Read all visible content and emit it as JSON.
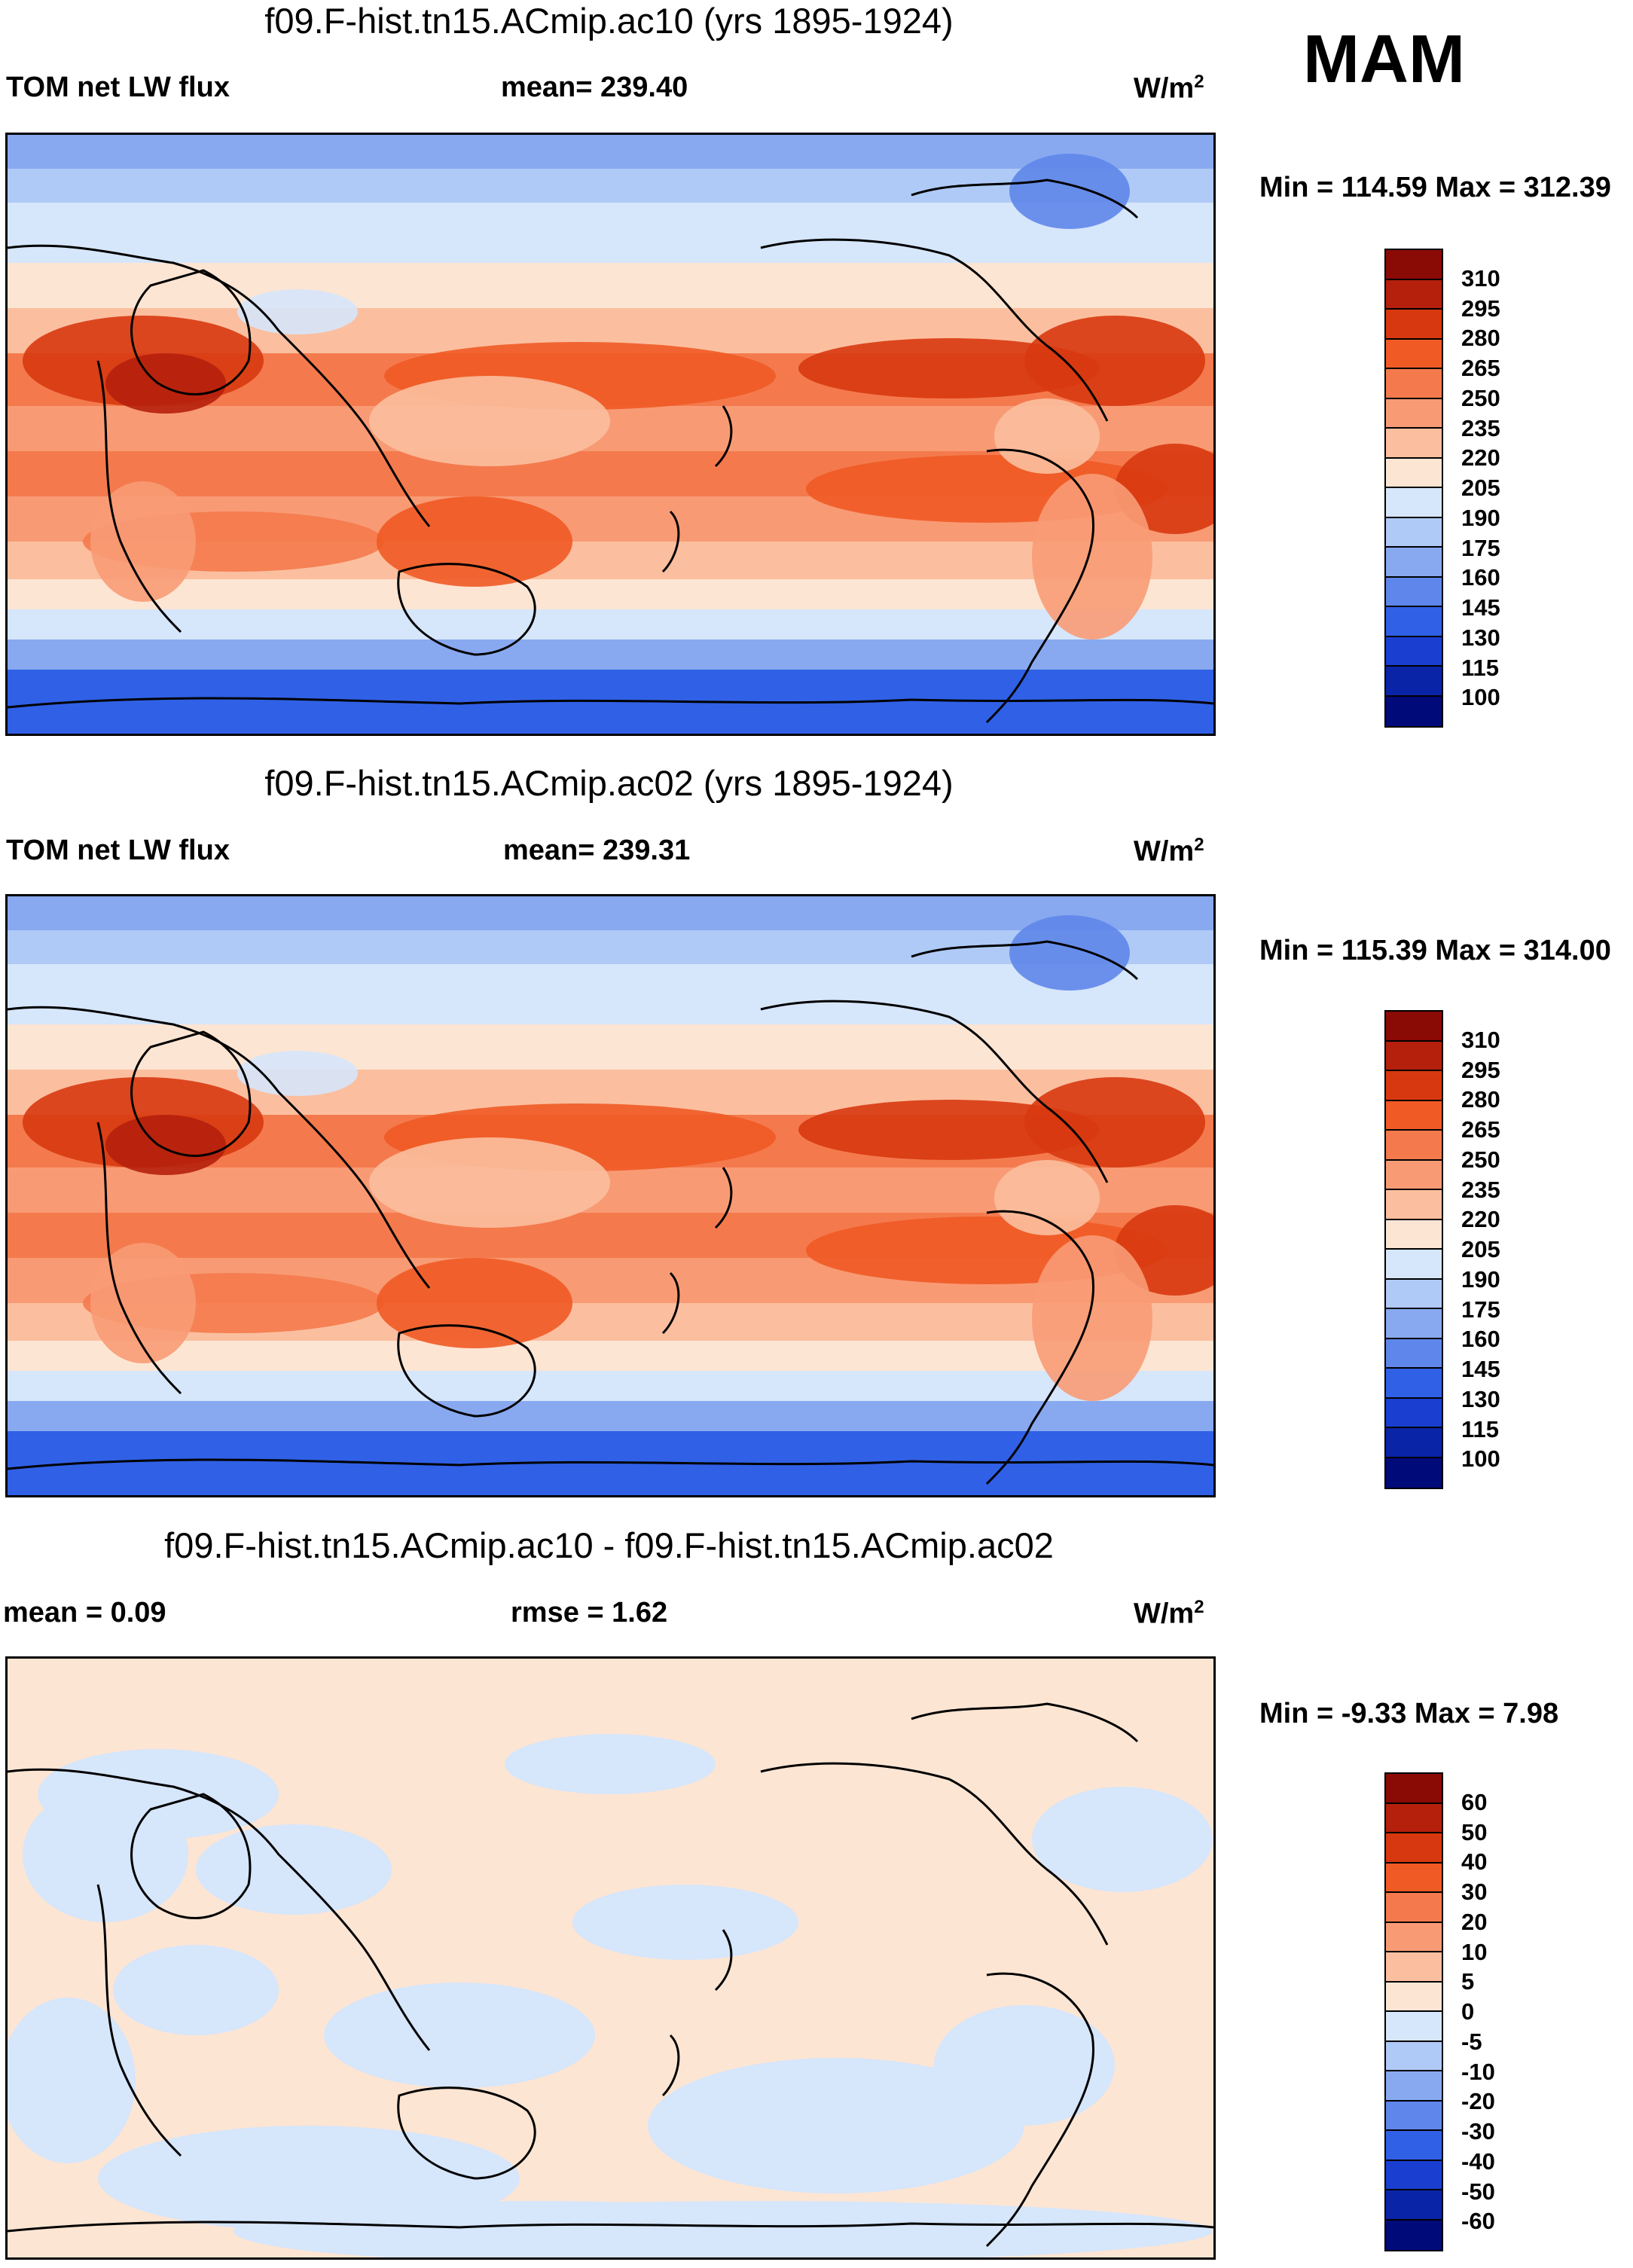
{
  "season": "MAM",
  "panels": [
    {
      "title": "f09.F-hist.tn15.ACmip.ac10 (yrs 1895-1924)",
      "variable": "TOM net LW flux",
      "stat": "mean= 239.40",
      "units_base": "W/m",
      "units_exp": "2",
      "minmax": "Min = 114.59 Max = 312.39",
      "colorbar_labels": [
        "310",
        "295",
        "280",
        "265",
        "250",
        "235",
        "220",
        "205",
        "190",
        "175",
        "160",
        "145",
        "130",
        "115",
        "100"
      ]
    },
    {
      "title": "f09.F-hist.tn15.ACmip.ac02 (yrs 1895-1924)",
      "variable": "TOM net LW flux",
      "stat": "mean= 239.31",
      "units_base": "W/m",
      "units_exp": "2",
      "minmax": "Min = 115.39 Max = 314.00",
      "colorbar_labels": [
        "310",
        "295",
        "280",
        "265",
        "250",
        "235",
        "220",
        "205",
        "190",
        "175",
        "160",
        "145",
        "130",
        "115",
        "100"
      ]
    },
    {
      "title": "f09.F-hist.tn15.ACmip.ac10 - f09.F-hist.tn15.ACmip.ac02",
      "variable": "mean =   0.09",
      "stat": "rmse =   1.62",
      "units_base": "W/m",
      "units_exp": "2",
      "minmax": "Min =  -9.33 Max =   7.98",
      "colorbar_labels": [
        "60",
        "50",
        "40",
        "30",
        "20",
        "10",
        "5",
        "0",
        "-5",
        "-10",
        "-20",
        "-30",
        "-40",
        "-50",
        "-60"
      ]
    }
  ],
  "colors": {
    "scale": [
      "#8a0a05",
      "#b5200c",
      "#d8380f",
      "#f05a25",
      "#f47a4d",
      "#f89b75",
      "#fbbf9f",
      "#fde5d3",
      "#d6e6fb",
      "#afcaf6",
      "#88a9f0",
      "#5f86ea",
      "#3060e6",
      "#1a3ed0",
      "#0a24a8",
      "#000a78"
    ],
    "coast": "#000000"
  }
}
